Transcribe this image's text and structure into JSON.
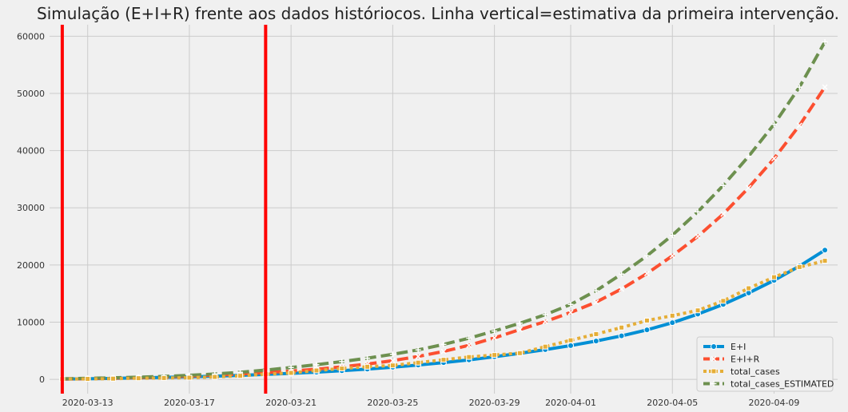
{
  "chart_data": {
    "type": "line",
    "title": "Simulação (E+I+R) frente aos dados históriocos. Linha vertical=estimativa da primeira intervenção.",
    "xlabel": "",
    "ylabel": "",
    "x_axis": "date",
    "xlim": [
      "2020-03-11T12:00",
      "2020-04-11T12:00"
    ],
    "ylim": [
      -2500,
      62000
    ],
    "x_ticks": [
      "2020-03-13",
      "2020-03-17",
      "2020-03-21",
      "2020-03-25",
      "2020-03-29",
      "2020-04-01",
      "2020-04-05",
      "2020-04-09"
    ],
    "y_ticks": [
      0,
      10000,
      20000,
      30000,
      40000,
      50000,
      60000
    ],
    "grid": true,
    "legend_placement": "bottom-right",
    "x": [
      "2020-03-12",
      "2020-03-13",
      "2020-03-14",
      "2020-03-15",
      "2020-03-16",
      "2020-03-17",
      "2020-03-18",
      "2020-03-19",
      "2020-03-20",
      "2020-03-21",
      "2020-03-22",
      "2020-03-23",
      "2020-03-24",
      "2020-03-25",
      "2020-03-26",
      "2020-03-27",
      "2020-03-28",
      "2020-03-29",
      "2020-03-30",
      "2020-03-31",
      "2020-04-01",
      "2020-04-02",
      "2020-04-03",
      "2020-04-04",
      "2020-04-05",
      "2020-04-06",
      "2020-04-07",
      "2020-04-08",
      "2020-04-09",
      "2020-04-10",
      "2020-04-11"
    ],
    "vertical_lines": [
      {
        "x": "2020-03-12",
        "color": "#ff0000"
      },
      {
        "x": "2020-03-20",
        "color": "#ff0000"
      }
    ],
    "series": [
      {
        "name": "E+I",
        "color": "#008fd5",
        "marker": "circle",
        "values": [
          50,
          100,
          170,
          250,
          340,
          440,
          560,
          700,
          860,
          1050,
          1260,
          1510,
          1800,
          2130,
          2500,
          2920,
          3400,
          3950,
          4550,
          5200,
          5900,
          6700,
          7600,
          8650,
          9900,
          11400,
          13100,
          15100,
          17300,
          19800,
          22600
        ]
      },
      {
        "name": "E+I+R",
        "color": "#fc4f30",
        "marker": "x",
        "values": [
          50,
          120,
          200,
          300,
          420,
          560,
          730,
          930,
          1170,
          1450,
          1780,
          2180,
          2670,
          3270,
          4000,
          4880,
          5950,
          7250,
          8700,
          10100,
          11700,
          13500,
          15800,
          18500,
          21600,
          25000,
          28900,
          33500,
          38600,
          44400,
          51100
        ]
      },
      {
        "name": "total_cases",
        "color": "#e5ae38",
        "marker": "square",
        "values": [
          52,
          77,
          121,
          200,
          234,
          291,
          428,
          621,
          904,
          1128,
          1546,
          1891,
          2201,
          2433,
          2915,
          3417,
          3904,
          4256,
          4579,
          5717,
          6836,
          7910,
          9056,
          10278,
          11130,
          12056,
          13717,
          15927,
          17857,
          19638,
          20727
        ]
      },
      {
        "name": "total_cases_ESTIMATED",
        "color": "#6d904f",
        "marker": "plus",
        "values": [
          100,
          180,
          270,
          380,
          520,
          700,
          930,
          1240,
          1620,
          2070,
          2560,
          3100,
          3700,
          4380,
          5150,
          6100,
          7200,
          8450,
          9800,
          11300,
          13100,
          15500,
          18400,
          21600,
          25200,
          29300,
          33900,
          39000,
          44600,
          51100,
          59000
        ]
      }
    ]
  }
}
